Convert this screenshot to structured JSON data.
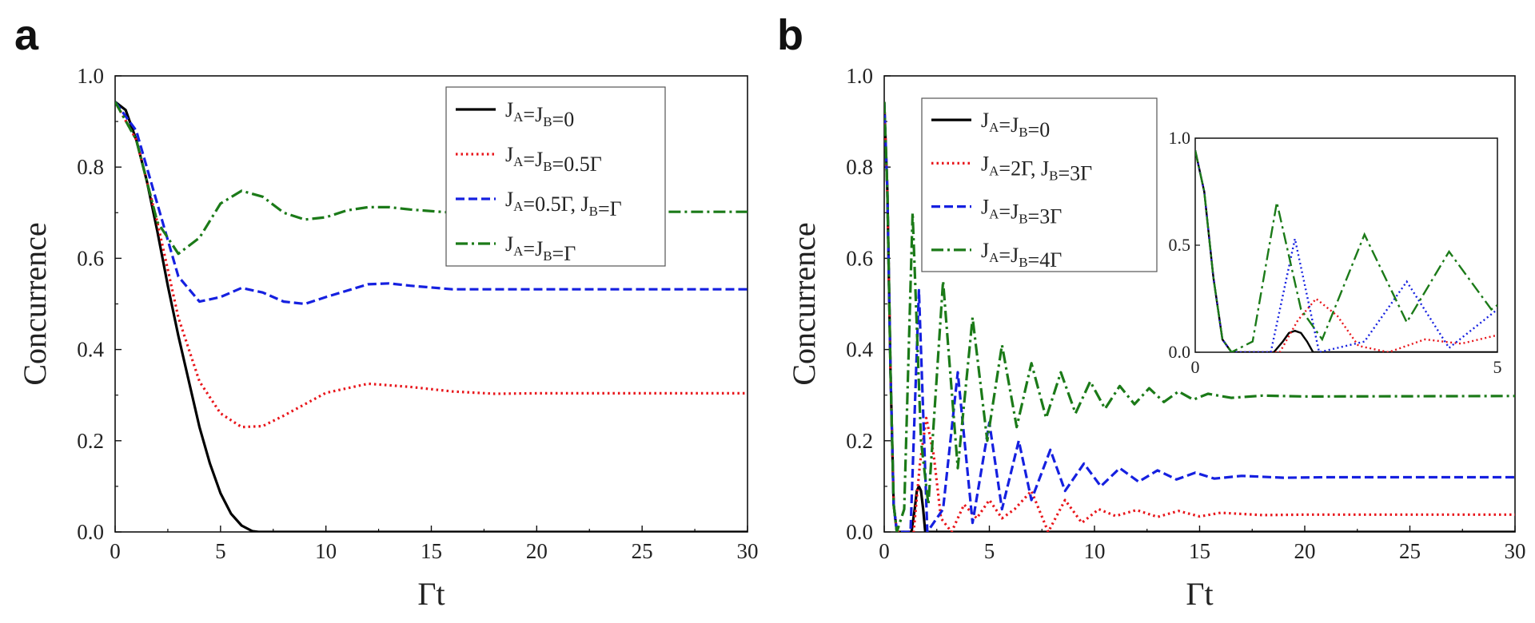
{
  "chart_data": [
    {
      "panel": "a",
      "type": "line",
      "xlabel": "Γt",
      "ylabel": "Concurrence",
      "xlim": [
        0,
        30
      ],
      "ylim": [
        0,
        1.0
      ],
      "xticks": [
        "0",
        "5",
        "10",
        "15",
        "20",
        "25",
        "30"
      ],
      "yticks": [
        "0.0",
        "0.2",
        "0.4",
        "0.6",
        "0.8",
        "1.0"
      ],
      "legend_position": "top-right",
      "series": [
        {
          "name": "J_A=J_B=0",
          "label": {
            "pre": "J",
            "s1": "A",
            "mid": "=J",
            "s2": "B",
            "post": "=0"
          },
          "color": "#000000",
          "style": "solid",
          "x": [
            0,
            0.5,
            1,
            1.5,
            2,
            2.5,
            3,
            3.5,
            4,
            4.5,
            5,
            5.5,
            6,
            6.5,
            6.8,
            30
          ],
          "y": [
            0.943,
            0.925,
            0.86,
            0.77,
            0.66,
            0.54,
            0.43,
            0.33,
            0.23,
            0.15,
            0.085,
            0.04,
            0.014,
            0.002,
            0,
            0
          ]
        },
        {
          "name": "J_A=J_B=0.5Γ",
          "label": {
            "pre": "J",
            "s1": "A",
            "mid": "=J",
            "s2": "B",
            "post": "=0.5Γ"
          },
          "color": "#e8161b",
          "style": "dotted",
          "x": [
            0,
            1,
            2,
            3,
            4,
            5,
            6,
            7,
            8,
            10,
            12,
            14,
            16,
            18,
            20,
            30
          ],
          "y": [
            0.943,
            0.86,
            0.68,
            0.47,
            0.33,
            0.26,
            0.23,
            0.232,
            0.255,
            0.305,
            0.325,
            0.318,
            0.308,
            0.303,
            0.304,
            0.304
          ]
        },
        {
          "name": "J_A=0.5Γ, J_B=Γ",
          "label": {
            "pre": "J",
            "s1": "A",
            "mid": "=0.5Γ, J",
            "s2": "B",
            "post": "=Γ"
          },
          "color": "#1520e0",
          "style": "dashed",
          "x": [
            0,
            1,
            2,
            3,
            4,
            5,
            6,
            7,
            8,
            9,
            10,
            12,
            13,
            14,
            16,
            30
          ],
          "y": [
            0.943,
            0.88,
            0.72,
            0.56,
            0.505,
            0.515,
            0.535,
            0.525,
            0.505,
            0.5,
            0.515,
            0.543,
            0.545,
            0.54,
            0.532,
            0.532
          ]
        },
        {
          "name": "J_A=J_B=Γ",
          "label": {
            "pre": "J",
            "s1": "A",
            "mid": "=J",
            "s2": "B",
            "post": "=Γ"
          },
          "color": "#1b7a18",
          "style": "dashdot",
          "x": [
            0,
            1,
            2,
            3,
            4,
            5,
            6,
            7,
            8,
            9,
            10,
            11,
            12,
            13,
            14,
            16,
            18,
            20,
            30
          ],
          "y": [
            0.943,
            0.86,
            0.68,
            0.61,
            0.645,
            0.72,
            0.748,
            0.735,
            0.7,
            0.685,
            0.69,
            0.705,
            0.712,
            0.712,
            0.707,
            0.7,
            0.703,
            0.702,
            0.702
          ]
        }
      ]
    },
    {
      "panel": "b",
      "type": "line",
      "xlabel": "Γt",
      "ylabel": "Concurrence",
      "xlim": [
        0,
        30
      ],
      "ylim": [
        0,
        1.0
      ],
      "xticks": [
        "0",
        "5",
        "10",
        "15",
        "20",
        "25",
        "30"
      ],
      "yticks": [
        "0.0",
        "0.2",
        "0.4",
        "0.6",
        "0.8",
        "1.0"
      ],
      "legend_position": "top-left",
      "series": [
        {
          "name": "J_A=J_B=0",
          "label": {
            "pre": "J",
            "s1": "A",
            "mid": "=J",
            "s2": "B",
            "post": "=0"
          },
          "color": "#000000",
          "style": "solid",
          "x": [
            0,
            0.15,
            0.3,
            0.45,
            0.6,
            1.3,
            1.45,
            1.55,
            1.65,
            1.75,
            1.85,
            1.95,
            30
          ],
          "y": [
            0.943,
            0.75,
            0.35,
            0.06,
            0,
            0,
            0.05,
            0.09,
            0.1,
            0.09,
            0.05,
            0,
            0
          ]
        },
        {
          "name": "J_A=2Γ, J_B=3Γ",
          "label": {
            "pre": "J",
            "s1": "A",
            "mid": "=2Γ, J",
            "s2": "B",
            "post": "=3Γ"
          },
          "color": "#e8161b",
          "style": "dotted",
          "x": [
            0,
            0.15,
            0.3,
            0.45,
            0.6,
            1.4,
            1.7,
            2.0,
            2.35,
            2.7,
            3.2,
            3.8,
            4.4,
            5.0,
            5.6,
            6.2,
            7.0,
            7.8,
            8.6,
            9.4,
            10.2,
            11,
            12,
            13,
            14,
            15,
            16,
            18,
            20,
            30
          ],
          "y": [
            0.943,
            0.75,
            0.35,
            0.06,
            0,
            0,
            0.15,
            0.25,
            0.17,
            0.03,
            0,
            0.06,
            0.03,
            0.07,
            0.03,
            0.05,
            0.09,
            0,
            0.07,
            0.02,
            0.05,
            0.035,
            0.048,
            0.033,
            0.046,
            0.034,
            0.042,
            0.037,
            0.038,
            0.038
          ]
        },
        {
          "name": "J_A=J_B=3Γ",
          "label": {
            "pre": "J",
            "s1": "A",
            "mid": "=J",
            "s2": "B",
            "post": "=3Γ"
          },
          "color": "#1520e0",
          "style": "dashed",
          "x": [
            0,
            0.15,
            0.3,
            0.45,
            0.6,
            1.25,
            1.65,
            2.05,
            2.8,
            3.5,
            4.2,
            5.0,
            5.6,
            6.4,
            7.0,
            7.9,
            8.6,
            9.5,
            10.3,
            11.2,
            12.1,
            13.0,
            13.9,
            14.8,
            15.7,
            17,
            19,
            21,
            30
          ],
          "y": [
            0.943,
            0.75,
            0.35,
            0.06,
            0,
            0,
            0.53,
            0,
            0.05,
            0.35,
            0.02,
            0.24,
            0.05,
            0.2,
            0.07,
            0.18,
            0.09,
            0.15,
            0.1,
            0.14,
            0.11,
            0.135,
            0.115,
            0.13,
            0.117,
            0.123,
            0.119,
            0.12,
            0.12
          ]
        },
        {
          "name": "J_A=J_B=4Γ",
          "label": {
            "pre": "J",
            "s1": "A",
            "mid": "=J",
            "s2": "B",
            "post": "=4Γ"
          },
          "color": "#1b7a18",
          "style": "dashdot",
          "x": [
            0,
            0.15,
            0.3,
            0.45,
            0.6,
            0.95,
            1.35,
            1.75,
            2.1,
            2.8,
            3.5,
            4.2,
            4.9,
            5.6,
            6.3,
            7.0,
            7.7,
            8.4,
            9.1,
            9.8,
            10.5,
            11.2,
            11.9,
            12.6,
            13.3,
            14,
            14.7,
            15.4,
            16.5,
            18,
            20,
            30
          ],
          "y": [
            0.943,
            0.75,
            0.35,
            0.06,
            0,
            0.05,
            0.7,
            0.2,
            0.06,
            0.55,
            0.14,
            0.47,
            0.2,
            0.41,
            0.23,
            0.37,
            0.25,
            0.35,
            0.26,
            0.33,
            0.27,
            0.32,
            0.28,
            0.315,
            0.285,
            0.308,
            0.29,
            0.303,
            0.294,
            0.299,
            0.297,
            0.298
          ]
        }
      ],
      "inset": {
        "xlim": [
          0,
          5
        ],
        "ylim": [
          0,
          1.0
        ],
        "xticks": [
          "0",
          "5"
        ],
        "yticks": [
          "0.0",
          "0.5",
          "1.0"
        ],
        "series": [
          {
            "color": "#000000",
            "style": "solid",
            "x": [
              0,
              0.15,
              0.3,
              0.45,
              0.6,
              1.3,
              1.45,
              1.55,
              1.65,
              1.75,
              1.85,
              1.95,
              5
            ],
            "y": [
              0.943,
              0.75,
              0.35,
              0.06,
              0,
              0,
              0.05,
              0.09,
              0.1,
              0.09,
              0.05,
              0,
              0
            ]
          },
          {
            "color": "#e8161b",
            "style": "dotted",
            "x": [
              0,
              0.15,
              0.3,
              0.45,
              0.6,
              1.4,
              1.7,
              2.0,
              2.35,
              2.7,
              3.2,
              3.8,
              4.4,
              5.0
            ],
            "y": [
              0.943,
              0.75,
              0.35,
              0.06,
              0,
              0,
              0.15,
              0.25,
              0.17,
              0.03,
              0,
              0.06,
              0.04,
              0.08
            ]
          },
          {
            "color": "#1520e0",
            "style": "dotted",
            "x": [
              0,
              0.15,
              0.3,
              0.45,
              0.6,
              1.25,
              1.65,
              2.05,
              2.8,
              3.5,
              4.2,
              5.0
            ],
            "y": [
              0.943,
              0.75,
              0.35,
              0.06,
              0,
              0,
              0.53,
              0,
              0.05,
              0.33,
              0.02,
              0.2
            ]
          },
          {
            "color": "#1b7a18",
            "style": "dashdot",
            "x": [
              0,
              0.15,
              0.3,
              0.45,
              0.6,
              0.95,
              1.35,
              1.75,
              2.1,
              2.8,
              3.5,
              4.2,
              4.9,
              5.0
            ],
            "y": [
              0.943,
              0.75,
              0.35,
              0.06,
              0,
              0.05,
              0.7,
              0.2,
              0.06,
              0.55,
              0.14,
              0.47,
              0.2,
              0.22
            ]
          }
        ]
      }
    }
  ]
}
